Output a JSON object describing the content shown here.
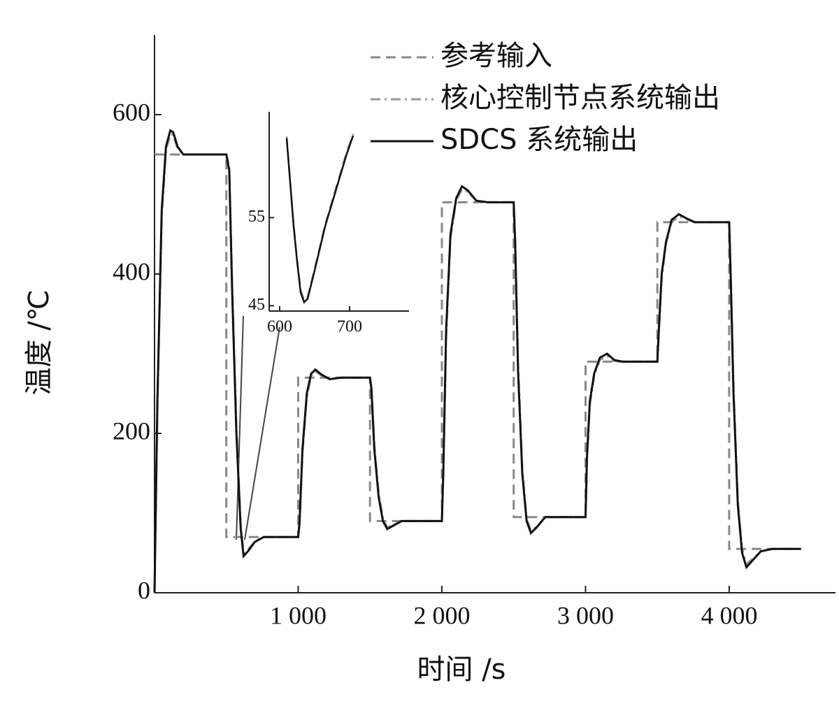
{
  "chart_data": [
    {
      "type": "line",
      "xlabel": "时间 /s",
      "ylabel": "温度 /℃",
      "xlim": [
        0,
        4740
      ],
      "ylim": [
        0,
        700
      ],
      "xticks": [
        {
          "value": 1000,
          "label": "1 000"
        },
        {
          "value": 2000,
          "label": "2 000"
        },
        {
          "value": 3000,
          "label": "3 000"
        },
        {
          "value": 4000,
          "label": "4 000"
        }
      ],
      "yticks": [
        0,
        200,
        400,
        600
      ],
      "legend": "upper right",
      "series": [
        {
          "name": "参考输入",
          "color": "#888888",
          "style": "dashed",
          "x": [
            0,
            500,
            500,
            1000,
            1000,
            1500,
            1500,
            2000,
            2000,
            2500,
            2500,
            3000,
            3000,
            3500,
            3500,
            4000,
            4000,
            4500
          ],
          "values": [
            550,
            550,
            70,
            70,
            270,
            270,
            90,
            90,
            490,
            490,
            95,
            95,
            290,
            290,
            465,
            465,
            55,
            55
          ]
        },
        {
          "name": "核心控制节点系统输出",
          "color": "#999999",
          "style": "dashdot",
          "x": [
            0,
            20,
            50,
            80,
            110,
            130,
            160,
            200,
            250,
            500,
            520,
            540,
            570,
            600,
            620,
            650,
            700,
            760,
            850,
            1000,
            1010,
            1030,
            1060,
            1090,
            1120,
            1160,
            1220,
            1300,
            1500,
            1510,
            1530,
            1560,
            1590,
            1620,
            1660,
            1720,
            1800,
            2000,
            2010,
            2030,
            2060,
            2100,
            2140,
            2180,
            2240,
            2320,
            2500,
            2510,
            2530,
            2560,
            2590,
            2620,
            2660,
            2720,
            2800,
            3000,
            3010,
            3030,
            3060,
            3100,
            3150,
            3200,
            3260,
            3500,
            3510,
            3530,
            3560,
            3600,
            3650,
            3700,
            3760,
            4000,
            4010,
            4030,
            4060,
            4090,
            4120,
            4160,
            4220,
            4300,
            4500
          ],
          "values": [
            0,
            230,
            470,
            555,
            575,
            575,
            558,
            550,
            550,
            550,
            535,
            390,
            210,
            85,
            50,
            54,
            65,
            70,
            70,
            70,
            85,
            175,
            245,
            272,
            278,
            273,
            268,
            270,
            270,
            258,
            185,
            125,
            93,
            82,
            85,
            90,
            90,
            90,
            145,
            320,
            445,
            492,
            506,
            503,
            492,
            490,
            490,
            445,
            290,
            155,
            93,
            78,
            83,
            95,
            95,
            95,
            165,
            235,
            272,
            292,
            297,
            291,
            290,
            290,
            325,
            395,
            438,
            465,
            472,
            469,
            465,
            465,
            405,
            260,
            115,
            55,
            36,
            42,
            52,
            55,
            55
          ]
        },
        {
          "name": "SDCS 系统输出",
          "color": "#111111",
          "style": "solid",
          "x": [
            0,
            20,
            50,
            80,
            110,
            130,
            160,
            200,
            250,
            500,
            520,
            540,
            570,
            600,
            620,
            650,
            700,
            760,
            850,
            1000,
            1010,
            1030,
            1060,
            1090,
            1120,
            1160,
            1220,
            1300,
            1500,
            1510,
            1530,
            1560,
            1590,
            1620,
            1660,
            1720,
            1800,
            2000,
            2010,
            2030,
            2060,
            2100,
            2140,
            2180,
            2240,
            2320,
            2500,
            2510,
            2530,
            2560,
            2590,
            2620,
            2660,
            2720,
            2800,
            3000,
            3010,
            3030,
            3060,
            3100,
            3150,
            3200,
            3260,
            3500,
            3510,
            3530,
            3560,
            3600,
            3650,
            3700,
            3760,
            4000,
            4010,
            4030,
            4060,
            4090,
            4120,
            4160,
            4220,
            4300,
            4500
          ],
          "values": [
            0,
            240,
            480,
            560,
            580,
            578,
            560,
            550,
            550,
            550,
            530,
            380,
            200,
            80,
            46,
            52,
            64,
            70,
            70,
            70,
            90,
            180,
            250,
            275,
            280,
            274,
            268,
            270,
            270,
            255,
            180,
            120,
            90,
            80,
            84,
            90,
            90,
            90,
            150,
            330,
            450,
            495,
            510,
            505,
            492,
            490,
            490,
            440,
            280,
            150,
            90,
            75,
            82,
            95,
            95,
            95,
            170,
            240,
            275,
            295,
            300,
            292,
            290,
            290,
            330,
            400,
            440,
            468,
            475,
            470,
            465,
            465,
            400,
            250,
            110,
            50,
            32,
            40,
            52,
            55,
            55
          ]
        }
      ]
    },
    {
      "type": "line",
      "xlim": [
        585,
        785
      ],
      "ylim": [
        44.4,
        67
      ],
      "xticks": [
        600,
        700
      ],
      "yticks": [
        45,
        55
      ],
      "series": [
        {
          "color": "#888888",
          "style": "dashed",
          "x": [
            610,
            615,
            620,
            625,
            630,
            635,
            640,
            650,
            665,
            680,
            695,
            705
          ],
          "values": [
            64.2,
            59.2,
            54.2,
            50.2,
            46.8,
            45.6,
            46,
            49.2,
            54.2,
            58.2,
            62.2,
            64.5
          ]
        },
        {
          "color": "#111111",
          "style": "solid",
          "x": [
            610,
            615,
            620,
            625,
            630,
            635,
            640,
            650,
            665,
            680,
            695,
            705
          ],
          "values": [
            64,
            59,
            54,
            50,
            46.5,
            45.4,
            45.8,
            49,
            54,
            58,
            62,
            64.3
          ]
        }
      ]
    }
  ]
}
